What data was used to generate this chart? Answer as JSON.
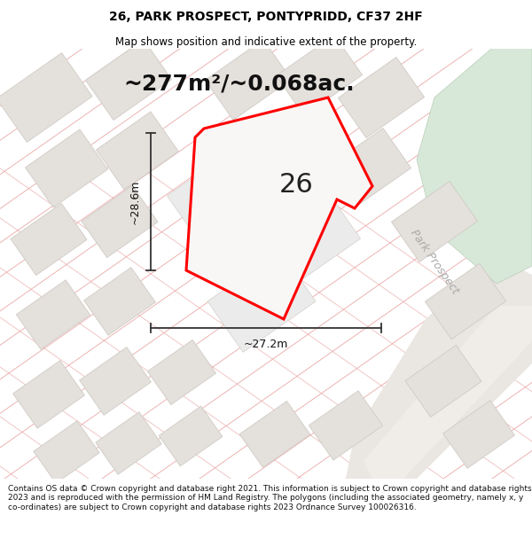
{
  "title": "26, PARK PROSPECT, PONTYPRIDD, CF37 2HF",
  "subtitle": "Map shows position and indicative extent of the property.",
  "area_text": "~277m²/~0.068ac.",
  "width_label": "~27.2m",
  "height_label": "~28.6m",
  "number_label": "26",
  "street_label": "Park Prospect",
  "footer": "Contains OS data © Crown copyright and database right 2021. This information is subject to Crown copyright and database rights 2023 and is reproduced with the permission of HM Land Registry. The polygons (including the associated geometry, namely x, y co-ordinates) are subject to Crown copyright and database rights 2023 Ordnance Survey 100026316.",
  "bg_color": "#f2f0ed",
  "plot_fill": "#f5f5f5",
  "plot_outline": "#ff0000",
  "building_fill": "#e4e0db",
  "building_edge": "#d0cbc5",
  "cadastral_color": "#e8a0a0",
  "green_fill": "#d8e8d8",
  "road_fill": "#e8e4df",
  "fig_width": 6.0,
  "fig_height": 6.25,
  "title_fontsize": 10,
  "subtitle_fontsize": 8.5,
  "area_fontsize": 18,
  "number_fontsize": 22,
  "dim_fontsize": 9,
  "footer_fontsize": 6.5
}
